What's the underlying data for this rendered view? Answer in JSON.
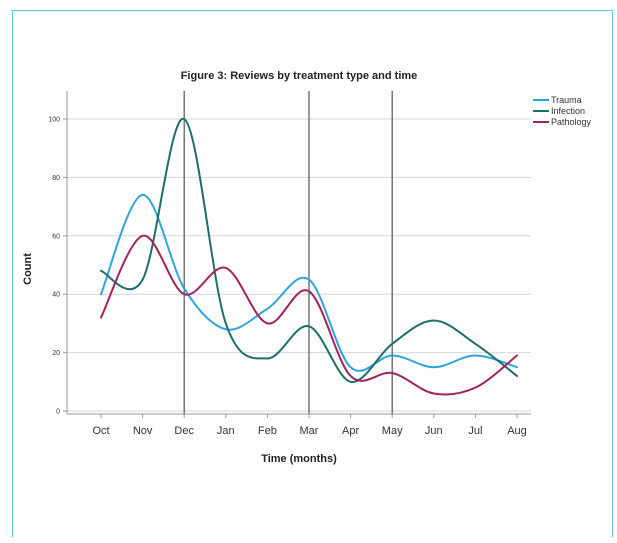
{
  "chart_data": {
    "type": "line",
    "title": "Figure 3: Reviews by treatment type and time",
    "xlabel": "Time (months)",
    "ylabel": "Count",
    "categories": [
      "Oct",
      "Nov",
      "Dec",
      "Jan",
      "Feb",
      "Mar",
      "Apr",
      "May",
      "Jun",
      "Jul",
      "Aug"
    ],
    "ylim": [
      -3,
      103
    ],
    "yticks": [
      0,
      20,
      40,
      60,
      80,
      100
    ],
    "grid": "horizontal",
    "reference_lines_at": [
      "Dec",
      "Mar",
      "May"
    ],
    "legend_position": "top-right",
    "series": [
      {
        "name": "Trauma",
        "color": "#2ea3dc",
        "values": [
          40,
          74,
          42,
          28,
          35,
          45,
          15,
          19,
          15,
          19,
          15
        ]
      },
      {
        "name": "Infection",
        "color": "#1e6e6a",
        "values": [
          48,
          45,
          100,
          30,
          18,
          29,
          10,
          23,
          31,
          23,
          12
        ]
      },
      {
        "name": "Pathology",
        "color": "#a2225c",
        "values": [
          32,
          60,
          40,
          49,
          30,
          41,
          12,
          13,
          6,
          8,
          19
        ]
      }
    ]
  }
}
